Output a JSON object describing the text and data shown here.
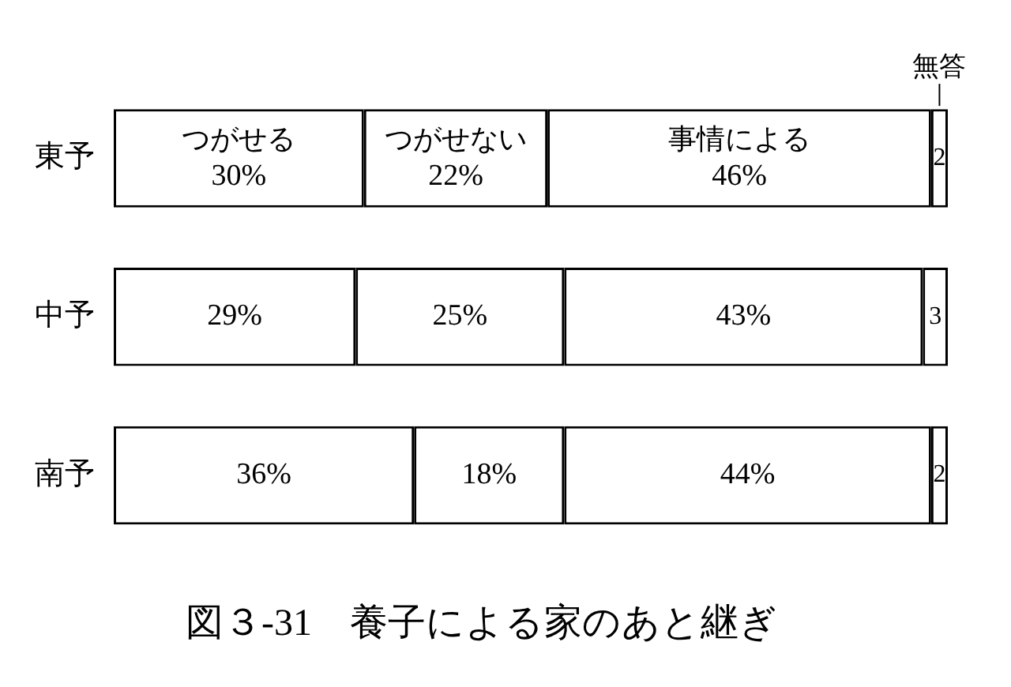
{
  "chart_data": {
    "type": "bar",
    "orientation": "horizontal",
    "stacked": true,
    "title": "図３-31　養子による家のあと継ぎ",
    "categories": [
      "東予",
      "中予",
      "南予"
    ],
    "xlim": [
      0,
      100
    ],
    "tick_labels": "y",
    "grid": false,
    "legend": false,
    "series": [
      {
        "name": "つがせる",
        "color": "#ffffff",
        "values": [
          30,
          29,
          36
        ],
        "value_labels": [
          "30%",
          "29%",
          "36%"
        ]
      },
      {
        "name": "つがせない",
        "color": "#ffffff",
        "values": [
          22,
          25,
          18
        ],
        "value_labels": [
          "22%",
          "25%",
          "18%"
        ]
      },
      {
        "name": "事情による",
        "color": "#ffffff",
        "values": [
          46,
          43,
          44
        ],
        "value_labels": [
          "46%",
          "43%",
          "44%"
        ]
      },
      {
        "name": "無答",
        "color": "#ffffff",
        "values": [
          2,
          3,
          2
        ],
        "value_labels": [
          "2",
          "3",
          "2"
        ]
      }
    ]
  }
}
